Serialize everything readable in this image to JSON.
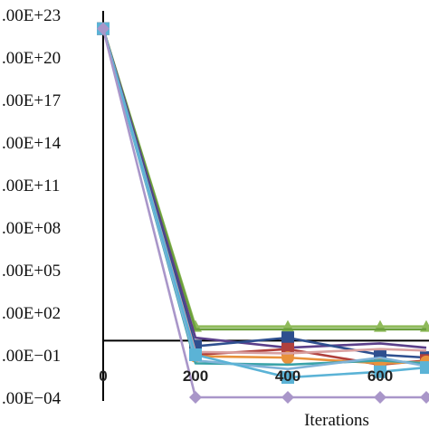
{
  "chart_data": {
    "type": "line",
    "xlabel": "Iterations",
    "ylabel": "",
    "y_scale": "log",
    "y_ticks": [
      ".00E−04",
      ".00E−01",
      ".00E+02",
      ".00E+05",
      ".00E+08",
      ".00E+11",
      ".00E+14",
      ".00E+17",
      ".00E+20",
      ".00E+23"
    ],
    "y_tick_exponents": [
      -4,
      -1,
      2,
      5,
      8,
      11,
      14,
      17,
      20,
      23
    ],
    "x_ticks": [
      "0",
      "200",
      "400",
      "600"
    ],
    "x": [
      0,
      200,
      400,
      600,
      700
    ],
    "x_axis_crossing_exponent": 0,
    "ylim_exponent": [
      -4,
      23
    ],
    "grid": false,
    "legend": "none",
    "series": [
      {
        "color": "#8fba5a",
        "marker": "triangle",
        "values": [
          22,
          1.0,
          1.0,
          1.0,
          1.0
        ]
      },
      {
        "color": "#6b9f3c",
        "marker": "none",
        "values": [
          22,
          0.8,
          0.8,
          0.8,
          0.8
        ]
      },
      {
        "color": "#5b3f8a",
        "marker": "none",
        "values": [
          22,
          0.2,
          -0.5,
          -0.2,
          -0.5
        ]
      },
      {
        "color": "#2e4f8f",
        "marker": "square",
        "values": [
          22,
          -0.4,
          0.2,
          -1.0,
          -1.2
        ]
      },
      {
        "color": "#b0403c",
        "marker": "square",
        "values": [
          22,
          -1.0,
          -0.6,
          -1.7,
          -1.4
        ]
      },
      {
        "color": "#e8923c",
        "marker": "circle",
        "values": [
          22,
          -1.1,
          -1.2,
          -1.6,
          -1.5
        ]
      },
      {
        "color": "#3aa3a8",
        "marker": "none",
        "values": [
          22,
          -1.6,
          -1.7,
          -1.4,
          -1.6
        ]
      },
      {
        "color": "#d9a0a0",
        "marker": "none",
        "values": [
          22,
          -0.8,
          -0.9,
          -0.6,
          -0.7
        ]
      },
      {
        "color": "#7fb3d8",
        "marker": "none",
        "values": [
          22,
          -1.4,
          -2.0,
          -1.2,
          -1.8
        ]
      },
      {
        "color": "#5bb3d6",
        "marker": "square",
        "values": [
          22,
          -1.0,
          -2.6,
          -2.2,
          -1.9
        ]
      },
      {
        "color": "#a996c9",
        "marker": "diamond",
        "values": [
          22,
          -4,
          -4,
          -4,
          -4
        ]
      }
    ]
  }
}
